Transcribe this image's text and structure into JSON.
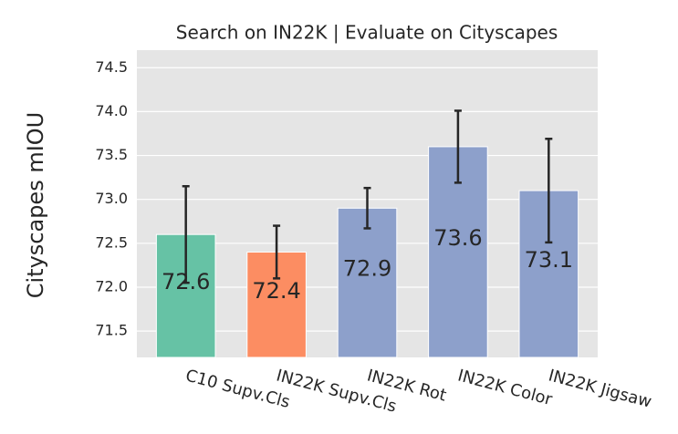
{
  "chart_data": {
    "type": "bar",
    "title": "Search on IN22K | Evaluate on Cityscapes",
    "y_label": "Cityscapes mIOU",
    "categories": [
      "C10 Supv.Cls",
      "IN22K Supv.Cls",
      "IN22K Rot",
      "IN22K Color",
      "IN22K Jigsaw"
    ],
    "values": [
      72.6,
      72.4,
      72.9,
      73.6,
      73.1
    ],
    "errors": [
      0.55,
      0.3,
      0.23,
      0.41,
      0.59
    ],
    "colors": [
      "#66c2a5",
      "#fc8d62",
      "#8da0cb",
      "#8da0cb",
      "#8da0cb"
    ],
    "ylim": [
      71.2,
      74.7
    ],
    "yticks": [
      71.5,
      72.0,
      72.5,
      73.0,
      73.5,
      74.0,
      74.5
    ],
    "ytick_labels": [
      "71.5",
      "72.0",
      "72.5",
      "73.0",
      "73.5",
      "74.0",
      "74.5"
    ],
    "grid": true
  }
}
